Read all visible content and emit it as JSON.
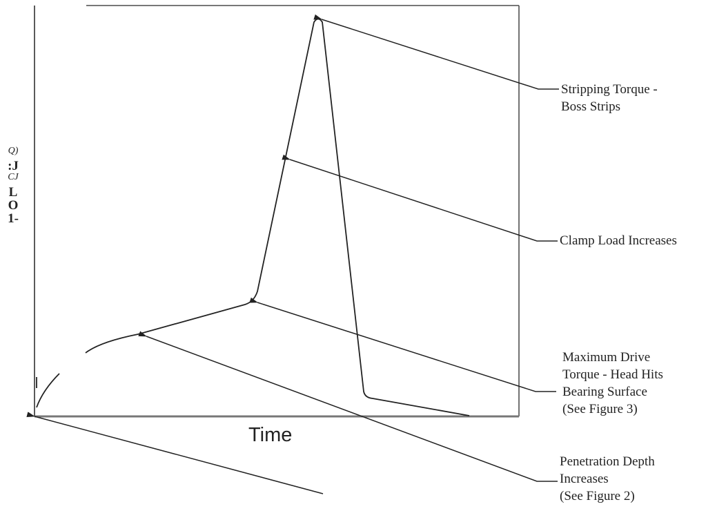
{
  "xlabel": "Time",
  "ylabel_lines": [
    "Q)",
    ":J",
    "CJ",
    "L",
    "O",
    "1-"
  ],
  "annotations": {
    "stripping": [
      "Stripping Torque -",
      "Boss Strips"
    ],
    "clamp": [
      "Clamp Load Increases"
    ],
    "max_drive": [
      "Maximum Drive",
      "Torque - Head Hits",
      "Bearing Surface",
      "(See Figure 3)"
    ],
    "penetration": [
      "Penetration  Depth",
      "Increases",
      "(See Figure  2)"
    ]
  }
}
